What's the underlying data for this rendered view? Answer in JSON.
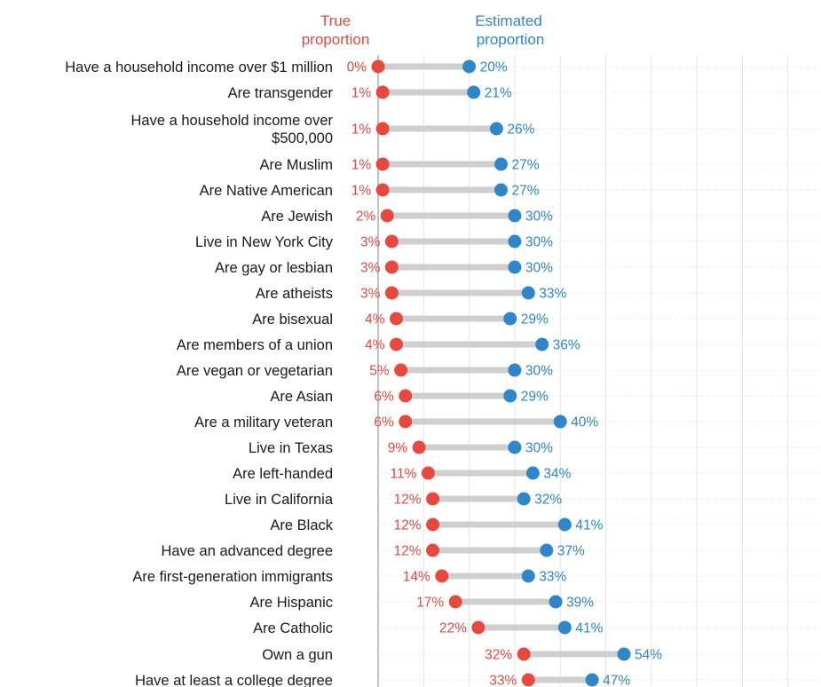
{
  "colors": {
    "true": "#e8493e",
    "estimated": "#2f86c9",
    "connector": "#cfcfcf",
    "grid": "#e6e6e6",
    "row_rule": "#e3e3e3",
    "axis": "#9a9a9a"
  },
  "chart_data": {
    "type": "dot-plot",
    "legend": {
      "true_label": [
        "True",
        "proportion"
      ],
      "estimated_label": [
        "Estimated",
        "proportion"
      ]
    },
    "xlim": [
      0,
      100
    ],
    "grid": true,
    "categories": [
      [
        "Have a household income over $1 million"
      ],
      [
        "Are transgender"
      ],
      [
        "Have a household income over",
        "$500,000"
      ],
      [
        "Are Muslim"
      ],
      [
        "Are Native American"
      ],
      [
        "Are Jewish"
      ],
      [
        "Live in New York City"
      ],
      [
        "Are gay or lesbian"
      ],
      [
        "Are atheists"
      ],
      [
        "Are bisexual"
      ],
      [
        "Are members of a union"
      ],
      [
        "Are vegan or vegetarian"
      ],
      [
        "Are Asian"
      ],
      [
        "Are a military veteran"
      ],
      [
        "Live in Texas"
      ],
      [
        "Are left-handed"
      ],
      [
        "Live in California"
      ],
      [
        "Are Black"
      ],
      [
        "Have an advanced degree"
      ],
      [
        "Are first-generation immigrants"
      ],
      [
        "Are Hispanic"
      ],
      [
        "Are Catholic"
      ],
      [
        "Own a gun"
      ],
      [
        "Have at least a college degree"
      ]
    ],
    "series": [
      {
        "name": "True proportion",
        "values": [
          0,
          1,
          1,
          1,
          1,
          2,
          3,
          3,
          3,
          4,
          4,
          5,
          6,
          6,
          9,
          11,
          12,
          12,
          12,
          14,
          17,
          22,
          32,
          33
        ],
        "labels": [
          "0%",
          "1%",
          "1%",
          "1%",
          "1%",
          "2%",
          "3%",
          "3%",
          "3%",
          "4%",
          "4%",
          "5%",
          "6%",
          "6%",
          "9%",
          "11%",
          "12%",
          "12%",
          "12%",
          "14%",
          "17%",
          "22%",
          "32%",
          "33%"
        ]
      },
      {
        "name": "Estimated proportion",
        "values": [
          20,
          21,
          26,
          27,
          27,
          30,
          30,
          30,
          33,
          29,
          36,
          30,
          29,
          40,
          30,
          34,
          32,
          41,
          37,
          33,
          39,
          41,
          54,
          47
        ],
        "labels": [
          "20%",
          "21%",
          "26%",
          "27%",
          "27%",
          "30%",
          "30%",
          "30%",
          "33%",
          "29%",
          "36%",
          "30%",
          "29%",
          "40%",
          "30%",
          "34%",
          "32%",
          "41%",
          "37%",
          "33%",
          "39%",
          "41%",
          "54%",
          "47%"
        ]
      }
    ]
  }
}
